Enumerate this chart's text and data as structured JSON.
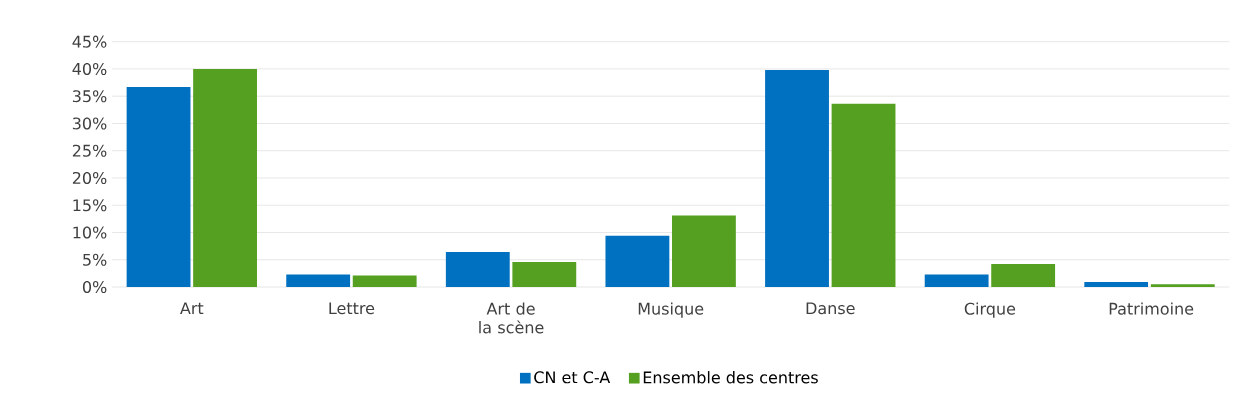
{
  "chart_data": {
    "type": "bar",
    "categories": [
      "Art",
      "Lettre",
      "Art de la scène",
      "Musique",
      "Danse",
      "Cirque",
      "Patrimoine"
    ],
    "series": [
      {
        "name": "CN et C-A",
        "color": "#0070c0",
        "values": [
          36.7,
          2.3,
          6.4,
          9.4,
          39.8,
          2.3,
          0.9
        ]
      },
      {
        "name": "Ensemble des centres",
        "color": "#55a021",
        "values": [
          40.0,
          2.1,
          4.6,
          13.1,
          33.6,
          4.2,
          0.5
        ]
      }
    ],
    "ylim": [
      0,
      45
    ],
    "yticks": [
      {
        "value": 0,
        "label": "0%"
      },
      {
        "value": 5,
        "label": "5%"
      },
      {
        "value": 10,
        "label": "10%"
      },
      {
        "value": 15,
        "label": "15%"
      },
      {
        "value": 20,
        "label": "20%"
      },
      {
        "value": 25,
        "label": "25%"
      },
      {
        "value": 30,
        "label": "30%"
      },
      {
        "value": 35,
        "label": "35%"
      },
      {
        "value": 40,
        "label": "40%"
      },
      {
        "value": 45,
        "label": "45%"
      }
    ],
    "grid": "y",
    "legend": "bottom"
  }
}
